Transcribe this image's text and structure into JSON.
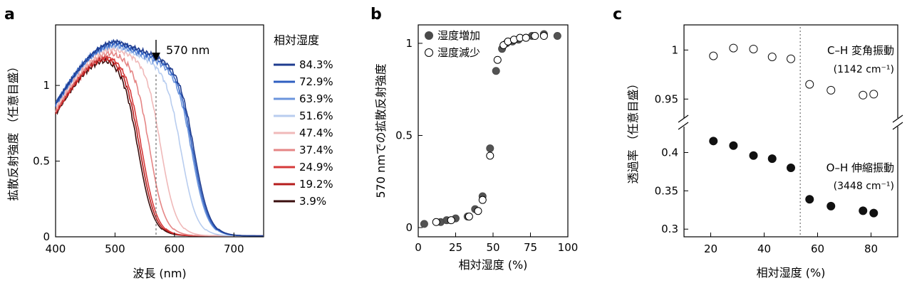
{
  "chart_data": [
    {
      "panel": "a",
      "type": "line",
      "xlabel": "波長 (nm)",
      "ylabel": "拡散反射強度 （任意目盛）",
      "xlim": [
        400,
        750
      ],
      "ylim": [
        0,
        1.4
      ],
      "xticks": [
        400,
        500,
        600,
        700
      ],
      "yticks": [
        {
          "v": 0,
          "label": "0"
        },
        {
          "v": 0.5,
          "label": "0.5"
        },
        {
          "v": 1,
          "label": "1"
        }
      ],
      "annotation": {
        "text": "570 nm",
        "x": 570
      },
      "legend_title": "相対湿度",
      "series": [
        {
          "name": "84.3%",
          "color": "#1f3c8f",
          "peak": 1.29,
          "x50": 634,
          "rise": 0.88
        },
        {
          "name": "72.9%",
          "color": "#2f5fc0",
          "peak": 1.28,
          "x50": 632,
          "rise": 0.88
        },
        {
          "name": "63.9%",
          "color": "#6b94dc",
          "peak": 1.27,
          "x50": 630,
          "rise": 0.88
        },
        {
          "name": "51.6%",
          "color": "#b8cdef",
          "peak": 1.26,
          "x50": 612,
          "rise": 0.87
        },
        {
          "name": "47.4%",
          "color": "#f0b9b9",
          "peak": 1.24,
          "x50": 577,
          "rise": 0.85
        },
        {
          "name": "37.4%",
          "color": "#e58585",
          "peak": 1.22,
          "x50": 558,
          "rise": 0.84
        },
        {
          "name": "24.9%",
          "color": "#d63a3a",
          "peak": 1.2,
          "x50": 545,
          "rise": 0.82
        },
        {
          "name": "19.2%",
          "color": "#b51c1c",
          "peak": 1.19,
          "x50": 542,
          "rise": 0.82
        },
        {
          "name": "3.9%",
          "color": "#3a0d0d",
          "peak": 1.18,
          "x50": 539,
          "rise": 0.81
        }
      ]
    },
    {
      "panel": "b",
      "type": "scatter",
      "xlabel": "相対湿度 (%)",
      "ylabel": "570 nmでの拡散反射強度",
      "xlim": [
        0,
        100
      ],
      "ylim": [
        -0.05,
        1.1
      ],
      "xticks": [
        0,
        25,
        50,
        75,
        100
      ],
      "yticks": [
        {
          "v": 0,
          "label": "0"
        },
        {
          "v": 0.5,
          "label": "0.5"
        },
        {
          "v": 1,
          "label": "1"
        }
      ],
      "series": [
        {
          "name": "湿度増加",
          "filled": true,
          "x": [
            4,
            15,
            19,
            25,
            33,
            38,
            43,
            48,
            52,
            56,
            59,
            63,
            67,
            72,
            76,
            84,
            93
          ],
          "y": [
            0.02,
            0.03,
            0.04,
            0.05,
            0.06,
            0.1,
            0.17,
            0.43,
            0.85,
            0.97,
            1.0,
            1.01,
            1.02,
            1.03,
            1.04,
            1.05,
            1.04
          ]
        },
        {
          "name": "湿度減少",
          "filled": false,
          "x": [
            12,
            22,
            34,
            40,
            43,
            48,
            53,
            57,
            60,
            64,
            68,
            72,
            78,
            84
          ],
          "y": [
            0.03,
            0.04,
            0.06,
            0.09,
            0.15,
            0.39,
            0.91,
            0.99,
            1.01,
            1.02,
            1.03,
            1.03,
            1.04,
            1.04
          ]
        }
      ]
    },
    {
      "panel": "c",
      "type": "scatter",
      "xlabel": "相対湿度 (%)",
      "ylabel": "透過率 （任意目盛）",
      "xlim": [
        10,
        90
      ],
      "xticks": [
        20,
        40,
        60,
        80
      ],
      "top_ylim": [
        0.935,
        1.022
      ],
      "top_yticks": [
        {
          "v": 1,
          "label": "1"
        },
        {
          "v": 0.95,
          "label": "0.95"
        }
      ],
      "bottom_ylim": [
        0.29,
        0.432
      ],
      "bottom_yticks": [
        {
          "v": 0.4,
          "label": "0.4"
        },
        {
          "v": 0.35,
          "label": "0.35"
        },
        {
          "v": 0.3,
          "label": "0.3"
        }
      ],
      "divider_x": 53.5,
      "annotations": [
        {
          "text": "C–H 変角振動",
          "sub": "(1142 cm⁻¹)"
        },
        {
          "text": "O–H 伸縮振動",
          "sub": "(3448 cm⁻¹)"
        }
      ],
      "series": [
        {
          "name": "C–H 変角振動",
          "filled": false,
          "x": [
            21,
            28.5,
            36,
            43,
            50,
            57,
            65,
            77,
            81
          ],
          "y": [
            0.994,
            1.002,
            1.001,
            0.993,
            0.991,
            0.965,
            0.959,
            0.954,
            0.955
          ]
        },
        {
          "name": "O–H 伸縮振動",
          "filled": true,
          "x": [
            21,
            28.5,
            36,
            43,
            50,
            57,
            65,
            77,
            81
          ],
          "y": [
            0.415,
            0.409,
            0.396,
            0.392,
            0.38,
            0.339,
            0.33,
            0.324,
            0.321
          ]
        }
      ]
    }
  ],
  "labels": {
    "a": "a",
    "b": "b",
    "c": "c"
  }
}
